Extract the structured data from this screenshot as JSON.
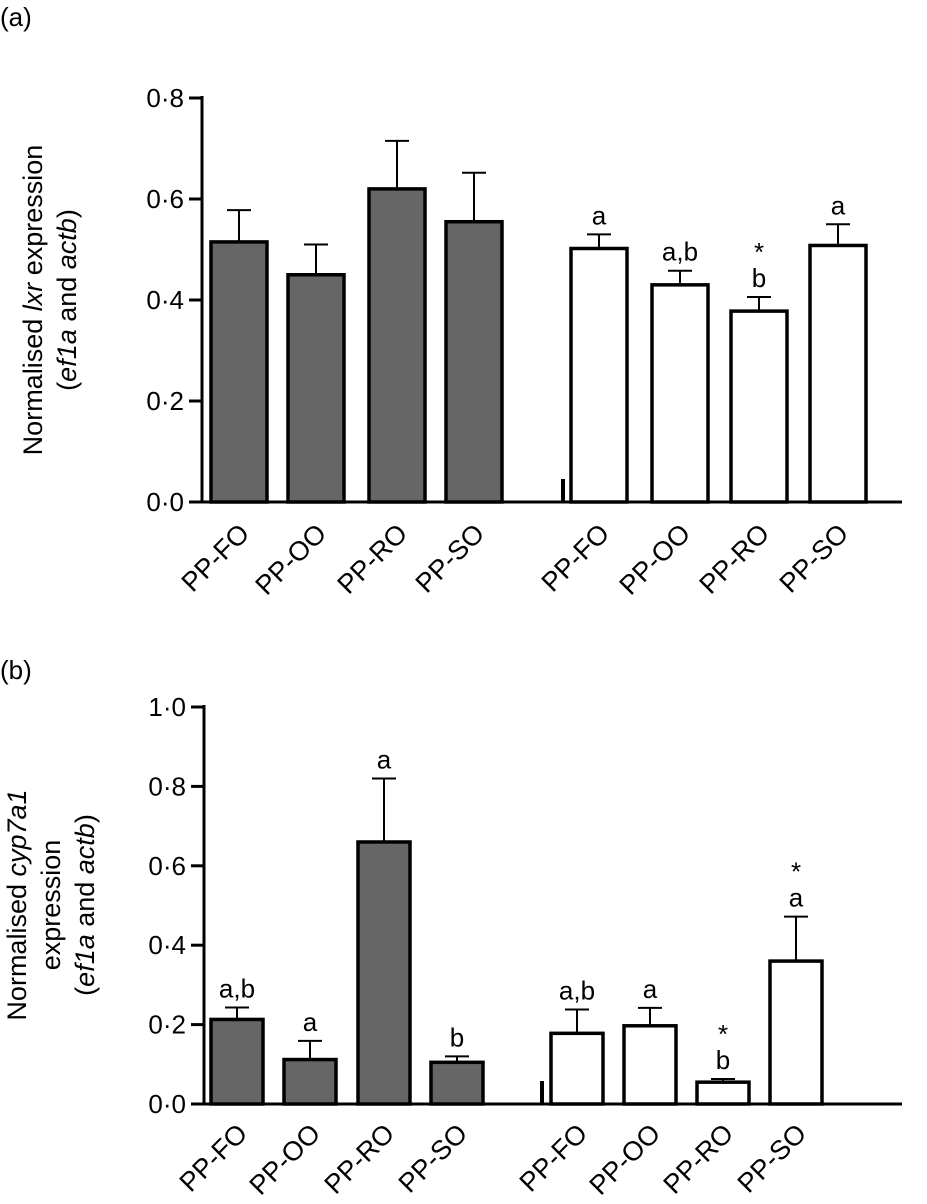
{
  "chart_data": [
    {
      "panel_label": "(a)",
      "type": "bar",
      "ylabel_prefix": "Normalised ",
      "ylabel_gene": "lxr",
      "ylabel_suffix": " expression",
      "ylabel_line2_open": "(",
      "ylabel_ref1": "ef1a",
      "ylabel_and": " and ",
      "ylabel_ref2": "actb",
      "ylabel_line2_close": ")",
      "ylim": [
        0,
        0.8
      ],
      "yticks": [
        0,
        0.2,
        0.4,
        0.6,
        0.8
      ],
      "ytick_labels": [
        "0·0",
        "0·2",
        "0·4",
        "0·6",
        "0·8"
      ],
      "groups": [
        {
          "name": "group-1",
          "fill": "#666666",
          "categories": [
            "PP-FO",
            "PP-OO",
            "PP-RO",
            "PP-SO"
          ],
          "values": [
            0.515,
            0.45,
            0.62,
            0.555
          ],
          "errors": [
            0.063,
            0.06,
            0.095,
            0.097
          ],
          "letters": [
            "",
            "",
            "",
            ""
          ],
          "stars": [
            "",
            "",
            "",
            ""
          ]
        },
        {
          "name": "group-2",
          "fill": "#ffffff",
          "categories": [
            "PP-FO",
            "PP-OO",
            "PP-RO",
            "PP-SO"
          ],
          "values": [
            0.502,
            0.43,
            0.378,
            0.508
          ],
          "errors": [
            0.028,
            0.028,
            0.028,
            0.042
          ],
          "letters": [
            "a",
            "a,b",
            "b",
            "a"
          ],
          "stars": [
            "",
            "",
            "*",
            ""
          ]
        }
      ]
    },
    {
      "panel_label": "(b)",
      "type": "bar",
      "ylabel_prefix": "Normalised ",
      "ylabel_gene": "cyp7a1",
      "ylabel_line2": "expression",
      "ylabel_line3_open": "(",
      "ylabel_ref1": "ef1a",
      "ylabel_and": " and ",
      "ylabel_ref2": "actb",
      "ylabel_line3_close": ")",
      "ylim": [
        0,
        1.0
      ],
      "yticks": [
        0,
        0.2,
        0.4,
        0.6,
        0.8,
        1.0
      ],
      "ytick_labels": [
        "0·0",
        "0·2",
        "0·4",
        "0·6",
        "0·8",
        "1·0"
      ],
      "groups": [
        {
          "name": "group-1",
          "fill": "#666666",
          "categories": [
            "PP-FO",
            "PP-OO",
            "PP-RO",
            "PP-SO"
          ],
          "values": [
            0.213,
            0.112,
            0.66,
            0.105
          ],
          "errors": [
            0.03,
            0.047,
            0.16,
            0.015
          ],
          "letters": [
            "a,b",
            "a",
            "a",
            "b"
          ],
          "stars": [
            "",
            "",
            "",
            ""
          ]
        },
        {
          "name": "group-2",
          "fill": "#ffffff",
          "categories": [
            "PP-FO",
            "PP-OO",
            "PP-RO",
            "PP-SO"
          ],
          "values": [
            0.178,
            0.197,
            0.055,
            0.36
          ],
          "errors": [
            0.06,
            0.045,
            0.008,
            0.112
          ],
          "letters": [
            "a,b",
            "a",
            "b",
            "a"
          ],
          "stars": [
            "",
            "",
            "*",
            "*"
          ]
        }
      ]
    }
  ]
}
